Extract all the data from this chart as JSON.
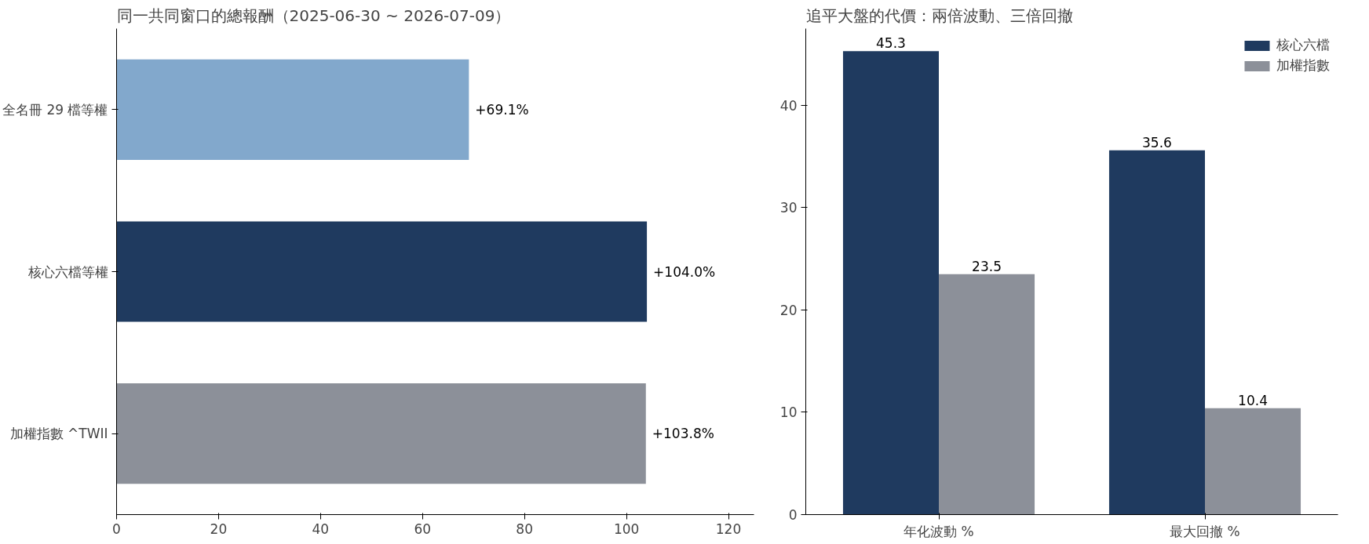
{
  "chart_data": [
    {
      "type": "bar",
      "orientation": "horizontal",
      "title": "同一共同窗口的總報酬（2025-06-30 ~ 2026-07-09）",
      "categories": [
        "全名冊 29 檔等權",
        "核心六檔等權",
        "加權指數 ^TWII"
      ],
      "values": [
        69.1,
        104.0,
        103.8
      ],
      "colors": [
        "#82a8cc",
        "#1f3a5f",
        "#8c9099"
      ],
      "value_labels": [
        "+69.1%",
        "+104.0%",
        "+103.8%"
      ],
      "xlim": [
        0,
        125
      ],
      "xticks": [
        0,
        20,
        40,
        60,
        80,
        100,
        120
      ],
      "grid": false,
      "legend": false
    },
    {
      "type": "bar",
      "title": "追平大盤的代價：兩倍波動、三倍回撤",
      "categories": [
        "年化波動 %",
        "最大回撤 %"
      ],
      "series": [
        {
          "name": "核心六檔",
          "color": "#1f3a5f",
          "values": [
            45.3,
            35.6
          ]
        },
        {
          "name": "加權指數",
          "color": "#8c9099",
          "values": [
            23.5,
            10.4
          ]
        }
      ],
      "data_labels": true,
      "ylim": [
        0,
        47.5
      ],
      "yticks": [
        0,
        10,
        20,
        30,
        40
      ],
      "grid": false,
      "legend": "top right"
    }
  ]
}
